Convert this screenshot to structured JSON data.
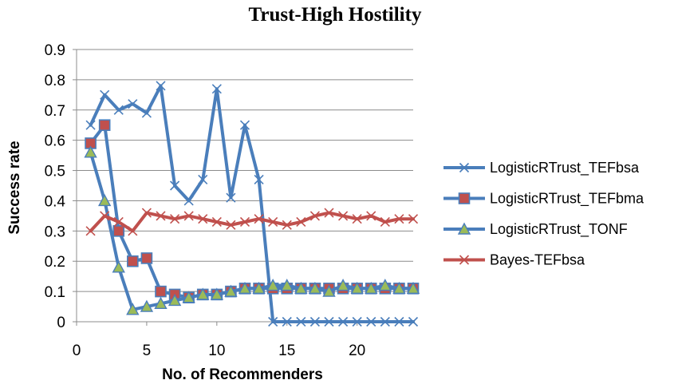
{
  "chart_data": {
    "type": "line",
    "title": "Trust-High Hostility",
    "xlabel": "No. of Recommenders",
    "ylabel": "Success rate",
    "xlim": [
      0,
      24
    ],
    "ylim": [
      0,
      0.9
    ],
    "x_ticks": [
      0,
      5,
      10,
      15,
      20
    ],
    "y_ticks": [
      0,
      0.1,
      0.2,
      0.3,
      0.4,
      0.5,
      0.6,
      0.7,
      0.8,
      0.9
    ],
    "grid": "horizontal",
    "legend_position": "right",
    "x": [
      1,
      2,
      3,
      4,
      5,
      6,
      7,
      8,
      9,
      10,
      11,
      12,
      13,
      14,
      15,
      16,
      17,
      18,
      19,
      20,
      21,
      22,
      23,
      24
    ],
    "series": [
      {
        "name": "LogisticRTrust_TEFbsa",
        "color": "#4a7ebb",
        "marker": "x",
        "values": [
          0.65,
          0.75,
          0.7,
          0.72,
          0.69,
          0.78,
          0.45,
          0.4,
          0.47,
          0.77,
          0.41,
          0.65,
          0.47,
          0.0,
          0.0,
          0.0,
          0.0,
          0.0,
          0.0,
          0.0,
          0.0,
          0.0,
          0.0,
          0.0
        ]
      },
      {
        "name": "LogisticRTrust_TEFbma",
        "color": "#4a7ebb",
        "marker_fill": "#c0504d",
        "marker": "square",
        "values": [
          0.59,
          0.65,
          0.3,
          0.2,
          0.21,
          0.1,
          0.09,
          0.08,
          0.09,
          0.09,
          0.1,
          0.11,
          0.11,
          0.11,
          0.11,
          0.11,
          0.11,
          0.11,
          0.11,
          0.11,
          0.11,
          0.11,
          0.11,
          0.11
        ]
      },
      {
        "name": "LogisticRTrust_TONF",
        "color": "#4a7ebb",
        "marker_fill": "#9bbb59",
        "marker": "triangle",
        "values": [
          0.56,
          0.4,
          0.18,
          0.04,
          0.05,
          0.06,
          0.07,
          0.08,
          0.09,
          0.09,
          0.1,
          0.11,
          0.11,
          0.12,
          0.12,
          0.11,
          0.11,
          0.1,
          0.12,
          0.11,
          0.11,
          0.12,
          0.11,
          0.11
        ]
      },
      {
        "name": "Bayes-TEFbsa",
        "color": "#c0504d",
        "marker": "x",
        "values": [
          0.3,
          0.35,
          0.33,
          0.3,
          0.36,
          0.35,
          0.34,
          0.35,
          0.34,
          0.33,
          0.32,
          0.33,
          0.34,
          0.33,
          0.32,
          0.33,
          0.35,
          0.36,
          0.35,
          0.34,
          0.35,
          0.33,
          0.34,
          0.34
        ]
      }
    ]
  }
}
